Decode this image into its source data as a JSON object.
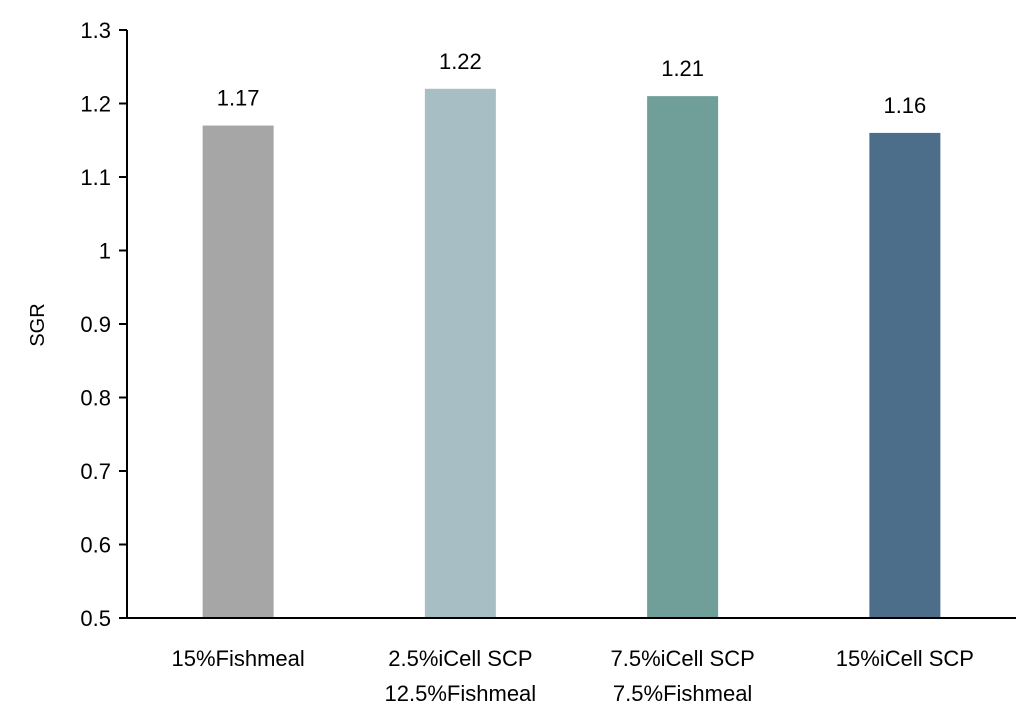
{
  "chart_data": {
    "type": "bar",
    "title": "",
    "xlabel": "",
    "ylabel": "SGR",
    "ylim": [
      0.5,
      1.3
    ],
    "yticks": [
      0.5,
      0.6,
      0.7,
      0.8,
      0.9,
      1,
      1.1,
      1.2,
      1.3
    ],
    "ytick_labels": [
      "0.5",
      "0.6",
      "0.7",
      "0.8",
      "0.9",
      "1",
      "1.1",
      "1.2",
      "1.3"
    ],
    "grid": false,
    "legend": "none",
    "categories": [
      [
        "15%Fishmeal"
      ],
      [
        "2.5%iCell SCP",
        "12.5%Fishmeal"
      ],
      [
        "7.5%iCell SCP",
        "7.5%Fishmeal"
      ],
      [
        "15%iCell SCP"
      ]
    ],
    "values": [
      1.17,
      1.22,
      1.21,
      1.16
    ],
    "value_labels": [
      "1.17",
      "1.22",
      "1.21",
      "1.16"
    ],
    "colors": [
      "#a6a6a6",
      "#a7bfc4",
      "#6f9f98",
      "#4d6e8a"
    ]
  }
}
